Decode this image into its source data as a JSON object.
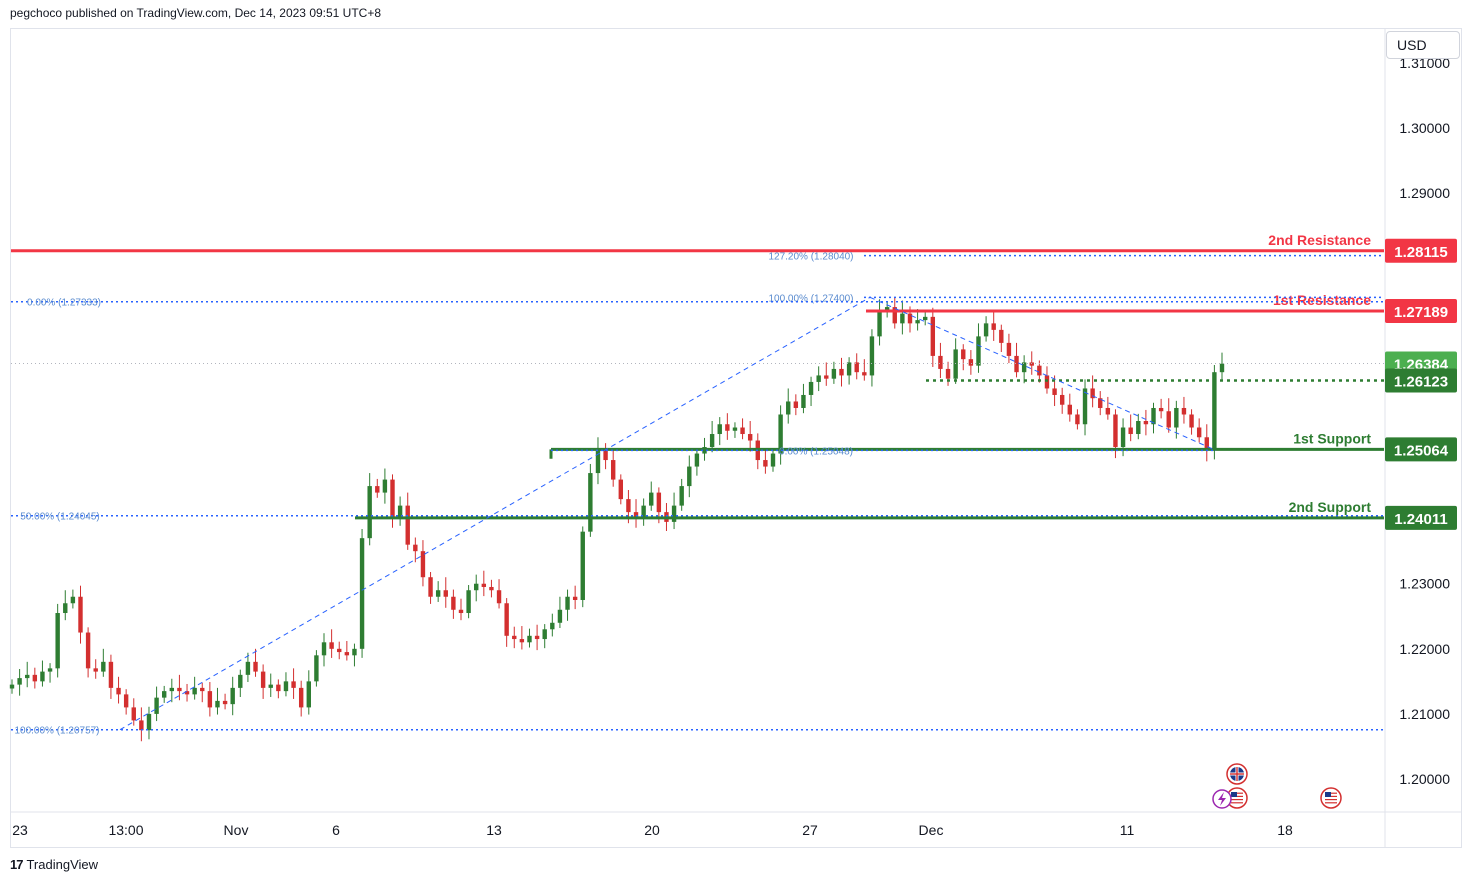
{
  "header": {
    "text": "pegchoco published on TradingView.com, Dec 14, 2023 09:51 UTC+8"
  },
  "currency": "USD",
  "footer": {
    "logo_mark": "17",
    "brand": "TradingView"
  },
  "colors": {
    "up": "#26a69a",
    "candle_up": "#2e7d32",
    "candle_down": "#d32f2f",
    "resistance": "#f23645",
    "support": "#2e7d32",
    "fib": "#2962ff",
    "fib_text": "#5b8ccf",
    "price_badge": "#4caf50"
  },
  "chart_data": {
    "type": "candlestick",
    "symbol_quote": "USD",
    "ylim": [
      1.195,
      1.315
    ],
    "y_ticks": [
      "1.20000",
      "1.21000",
      "1.22000",
      "1.23000",
      "1.29000",
      "1.30000",
      "1.31000"
    ],
    "x_ticks": [
      "23",
      "13:00",
      "Nov",
      "6",
      "13",
      "20",
      "27",
      "Dec",
      "11",
      "18"
    ],
    "levels": [
      {
        "name": "2nd Resistance",
        "price": 1.28115,
        "label": "1.28115",
        "kind": "resistance"
      },
      {
        "name": "1st Resistance",
        "price": 1.27189,
        "label": "1.27189",
        "kind": "resistance"
      },
      {
        "name": "1st Support",
        "price": 1.25064,
        "label": "1.25064",
        "kind": "support"
      },
      {
        "name": "2nd Support",
        "price": 1.24011,
        "label": "1.24011",
        "kind": "support"
      }
    ],
    "current_price": {
      "price": 1.26384,
      "label": "1.26384"
    },
    "dotted_level": {
      "price": 1.26123,
      "label": "1.26123"
    },
    "fib_levels": [
      {
        "label": "127.20% (1.28040)",
        "price": 1.2804
      },
      {
        "label": "100.00% (1.27400)",
        "price": 1.274
      },
      {
        "label": "0.00% (1.27333)",
        "price": 1.27333
      },
      {
        "label": "0.00% (1.25048)",
        "price": 1.25048
      },
      {
        "label": "50.00% (1.24045)",
        "price": 1.24045
      },
      {
        "label": "100.00% (1.20757)",
        "price": 1.20757
      }
    ],
    "closes": [
      1.2145,
      1.2155,
      1.216,
      1.215,
      1.2165,
      1.217,
      1.2255,
      1.227,
      1.228,
      1.2225,
      1.217,
      1.2165,
      1.218,
      1.214,
      1.213,
      1.211,
      1.209,
      1.2075,
      1.21,
      1.2125,
      1.2135,
      1.214,
      1.2135,
      1.213,
      1.214,
      1.2135,
      1.211,
      1.212,
      1.2115,
      1.214,
      1.216,
      1.218,
      1.2165,
      1.214,
      1.2145,
      1.2135,
      1.215,
      1.214,
      1.211,
      1.215,
      1.219,
      1.221,
      1.22,
      1.2195,
      1.219,
      1.22,
      1.237,
      1.245,
      1.244,
      1.246,
      1.24,
      1.242,
      1.236,
      1.235,
      1.231,
      1.228,
      1.229,
      1.228,
      1.226,
      1.2255,
      1.229,
      1.23,
      1.2295,
      1.229,
      1.227,
      1.222,
      1.2215,
      1.221,
      1.222,
      1.2215,
      1.223,
      1.224,
      1.226,
      1.228,
      1.2275,
      1.238,
      1.247,
      1.2505,
      1.249,
      1.246,
      1.243,
      1.241,
      1.24,
      1.242,
      1.244,
      1.241,
      1.2395,
      1.242,
      1.245,
      1.248,
      1.25,
      1.251,
      1.253,
      1.2545,
      1.2535,
      1.254,
      1.253,
      1.252,
      1.249,
      1.248,
      1.25,
      1.256,
      1.258,
      1.257,
      1.259,
      1.261,
      1.262,
      1.2615,
      1.263,
      1.262,
      1.264,
      1.2625,
      1.262,
      1.268,
      1.272,
      1.2725,
      1.27,
      1.2715,
      1.27,
      1.2705,
      1.271,
      1.265,
      1.263,
      1.2615,
      1.266,
      1.2645,
      1.2635,
      1.268,
      1.27,
      1.269,
      1.267,
      1.265,
      1.2625,
      1.264,
      1.2635,
      1.262,
      1.26,
      1.259,
      1.2575,
      1.256,
      1.2545,
      1.26,
      1.2585,
      1.257,
      1.256,
      1.251,
      1.254,
      1.253,
      1.255,
      1.2545,
      1.257,
      1.2565,
      1.254,
      1.257,
      1.256,
      1.254,
      1.2525,
      1.2505,
      1.2625,
      1.2638
    ]
  }
}
